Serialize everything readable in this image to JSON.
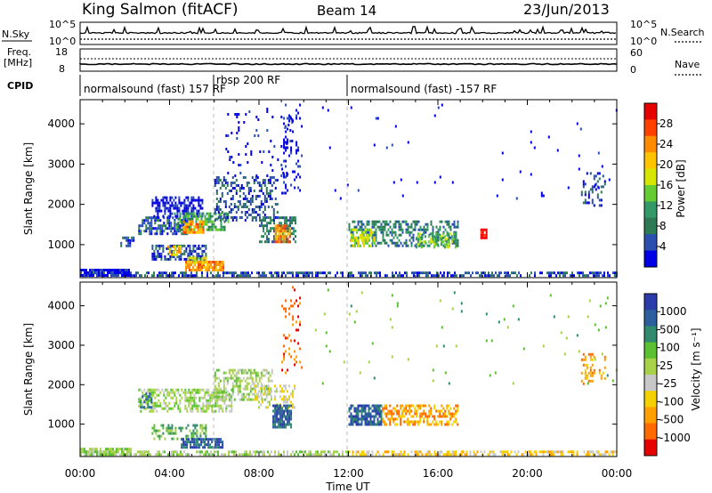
{
  "header": {
    "station": "King Salmon (fitACF)",
    "beam": "Beam 14",
    "date": "23/Jun/2013"
  },
  "strips": {
    "nsky_label": "N.Sky",
    "nsky_ticks": [
      "10^5",
      "10^0"
    ],
    "nsearch_label": "N.Search",
    "nsearch_ticks": [
      "10^5",
      "10^0"
    ],
    "freq_label": [
      "Freq.",
      "[MHz]"
    ],
    "freq_ticks": [
      "18",
      "8"
    ],
    "nave_label": "Nave",
    "nave_ticks": [
      "60",
      "0"
    ],
    "cpid_label": "CPID",
    "cpid_segments": [
      {
        "label": "normalsound (fast) 157 RF",
        "start_hour": 0,
        "end_hour": 6
      },
      {
        "label": "rbsp 200 RF",
        "start_hour": 6,
        "end_hour": 12
      },
      {
        "label": "normalsound (fast) -157 RF",
        "start_hour": 12,
        "end_hour": 24
      }
    ]
  },
  "power_colorbar": {
    "label": "Power [dB]",
    "ticks": [
      "28",
      "24",
      "20",
      "16",
      "12",
      "8",
      "4"
    ],
    "colors": [
      "#e60000",
      "#ff4000",
      "#ff8c00",
      "#ffc400",
      "#d6e600",
      "#66cc33",
      "#339966",
      "#2d7a55",
      "#2b4fb0",
      "#0000e6"
    ]
  },
  "velocity_colorbar": {
    "label": "Velocity [m s⁻¹]",
    "ticks": [
      "1000",
      "500",
      "100",
      "25",
      "-25",
      "-100",
      "-500",
      "-1000"
    ],
    "colors": [
      "#2b3caa",
      "#2d5f9e",
      "#2f8a6e",
      "#5cc033",
      "#a8d24a",
      "#c8c8c8",
      "#f5d000",
      "#ffa000",
      "#ff6a00",
      "#e60000"
    ]
  },
  "chart_data": [
    {
      "type": "heatmap",
      "panel": "power",
      "xlabel": "Time UT",
      "ylabel": "Slant Range [km]",
      "xlim": [
        0,
        24
      ],
      "ylim": [
        180,
        4600
      ],
      "yticks": [
        "4000",
        "3000",
        "2000",
        "1000"
      ],
      "xticks": [
        "00:00",
        "04:00",
        "08:00",
        "12:00",
        "16:00",
        "20:00",
        "00:00"
      ],
      "regions": [
        {
          "t0": 0.0,
          "t1": 24.0,
          "r0": 200,
          "r1": 330,
          "level": 1,
          "density": 0.55
        },
        {
          "t0": 0.0,
          "t1": 2.3,
          "r0": 240,
          "r1": 400,
          "level": 0,
          "density": 0.8
        },
        {
          "t0": 1.8,
          "t1": 2.4,
          "r0": 980,
          "r1": 1200,
          "level": 1,
          "density": 0.5
        },
        {
          "t0": 2.6,
          "t1": 4.8,
          "r0": 1300,
          "r1": 1700,
          "level": 1,
          "density": 0.6
        },
        {
          "t0": 3.2,
          "t1": 5.5,
          "r0": 1700,
          "r1": 2200,
          "level": 0,
          "density": 0.5
        },
        {
          "t0": 4.2,
          "t1": 6.6,
          "r0": 1350,
          "r1": 1800,
          "level": 3,
          "density": 0.55
        },
        {
          "t0": 4.6,
          "t1": 5.5,
          "r0": 1300,
          "r1": 1600,
          "level": 7,
          "density": 0.7
        },
        {
          "t0": 3.2,
          "t1": 5.6,
          "r0": 630,
          "r1": 1000,
          "level": 1,
          "density": 0.6
        },
        {
          "t0": 3.9,
          "t1": 4.5,
          "r0": 760,
          "r1": 980,
          "level": 6,
          "density": 0.6
        },
        {
          "t0": 4.7,
          "t1": 6.4,
          "r0": 380,
          "r1": 600,
          "level": 7,
          "density": 0.85
        },
        {
          "t0": 4.8,
          "t1": 5.6,
          "r0": 520,
          "r1": 700,
          "level": 5,
          "density": 0.6
        },
        {
          "t0": 6.0,
          "t1": 8.8,
          "r0": 1600,
          "r1": 2700,
          "level": 1,
          "density": 0.4
        },
        {
          "t0": 6.5,
          "t1": 9.6,
          "r0": 2700,
          "r1": 4400,
          "level": 0,
          "density": 0.08
        },
        {
          "t0": 8.0,
          "t1": 9.6,
          "r0": 1100,
          "r1": 1700,
          "level": 2,
          "density": 0.6
        },
        {
          "t0": 8.7,
          "t1": 9.4,
          "r0": 1050,
          "r1": 1500,
          "level": 7,
          "density": 0.75
        },
        {
          "t0": 9.0,
          "t1": 9.9,
          "r0": 2300,
          "r1": 4500,
          "level": 0,
          "density": 0.15
        },
        {
          "t0": 12.0,
          "t1": 16.9,
          "r0": 1000,
          "r1": 1600,
          "level": 2,
          "density": 0.5
        },
        {
          "t0": 12.1,
          "t1": 13.2,
          "r0": 1000,
          "r1": 1400,
          "level": 5,
          "density": 0.6
        },
        {
          "t0": 15.0,
          "t1": 16.8,
          "r0": 950,
          "r1": 1300,
          "level": 4,
          "density": 0.5
        },
        {
          "t0": 17.9,
          "t1": 18.2,
          "r0": 1200,
          "r1": 1400,
          "level": 9,
          "density": 0.8
        },
        {
          "t0": 22.4,
          "t1": 23.5,
          "r0": 2000,
          "r1": 2800,
          "level": 1,
          "density": 0.25
        },
        {
          "t0": 10.5,
          "t1": 24.0,
          "r0": 2000,
          "r1": 4500,
          "level": 0,
          "density": 0.01
        }
      ]
    },
    {
      "type": "heatmap",
      "panel": "velocity",
      "xlabel": "Time UT",
      "ylabel": "Slant Range [km]",
      "xlim": [
        0,
        24
      ],
      "ylim": [
        180,
        4600
      ],
      "yticks": [
        "4000",
        "3000",
        "2000",
        "1000"
      ],
      "xticks": [
        "00:00",
        "04:00",
        "08:00",
        "12:00",
        "16:00",
        "20:00",
        "00:00"
      ],
      "regions": [
        {
          "t0": 0.0,
          "t1": 12.0,
          "r0": 200,
          "r1": 330,
          "level": 5,
          "density": 0.55
        },
        {
          "t0": 12.0,
          "t1": 24.0,
          "r0": 200,
          "r1": 330,
          "level": 3,
          "density": 0.55
        },
        {
          "t0": 0.0,
          "t1": 2.3,
          "r0": 240,
          "r1": 400,
          "level": 5,
          "density": 0.8
        },
        {
          "t0": 2.6,
          "t1": 6.8,
          "r0": 1300,
          "r1": 1900,
          "level": 5,
          "density": 0.55
        },
        {
          "t0": 2.6,
          "t1": 3.2,
          "r0": 1450,
          "r1": 1800,
          "level": 7,
          "density": 0.6
        },
        {
          "t0": 3.2,
          "t1": 5.6,
          "r0": 650,
          "r1": 1000,
          "level": 6,
          "density": 0.5
        },
        {
          "t0": 4.5,
          "t1": 6.4,
          "r0": 380,
          "r1": 650,
          "level": 8,
          "density": 0.85
        },
        {
          "t0": 6.0,
          "t1": 8.6,
          "r0": 1600,
          "r1": 2400,
          "level": 5,
          "density": 0.5
        },
        {
          "t0": 7.8,
          "t1": 9.6,
          "r0": 1400,
          "r1": 2000,
          "level": 4,
          "density": 0.45
        },
        {
          "t0": 8.6,
          "t1": 9.4,
          "r0": 900,
          "r1": 1500,
          "level": 8,
          "density": 0.8
        },
        {
          "t0": 9.0,
          "t1": 9.9,
          "r0": 2300,
          "r1": 4500,
          "level": 1,
          "density": 0.12
        },
        {
          "t0": 12.0,
          "t1": 13.5,
          "r0": 1000,
          "r1": 1500,
          "level": 8,
          "density": 0.75
        },
        {
          "t0": 13.5,
          "t1": 16.9,
          "r0": 1000,
          "r1": 1500,
          "level": 2,
          "density": 0.55
        },
        {
          "t0": 22.4,
          "t1": 23.5,
          "r0": 2000,
          "r1": 2800,
          "level": 2,
          "density": 0.25
        },
        {
          "t0": 10.5,
          "t1": 24.0,
          "r0": 2000,
          "r1": 4500,
          "level": 6,
          "density": 0.01
        }
      ]
    }
  ]
}
